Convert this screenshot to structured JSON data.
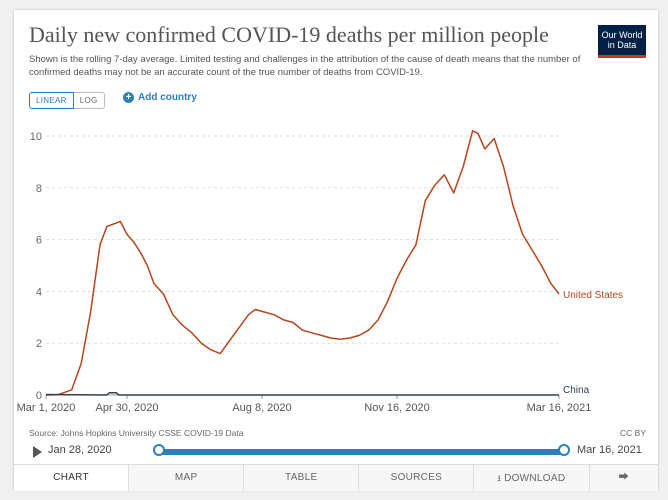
{
  "title": "Daily new confirmed COVID-19 deaths per million people",
  "subtitle": "Shown is the rolling 7-day average. Limited testing and challenges in the attribution of the cause of death means that the number of confirmed deaths may not be an accurate count of the true number of deaths from COVID-19.",
  "logo": {
    "line1": "Our World",
    "line2": "in Data"
  },
  "controls": {
    "linear": "LINEAR",
    "log": "LOG",
    "add_country": "Add country"
  },
  "source": "Source: Johns Hopkins University CSSE COVID-19 Data",
  "license": "CC BY",
  "timeline": {
    "start": "Jan 28, 2020",
    "end": "Mar 16, 2021"
  },
  "tabs": {
    "chart": "CHART",
    "map": "MAP",
    "table": "TABLE",
    "sources": "SOURCES",
    "download": "DOWNLOAD"
  },
  "colors": {
    "us": "#b5451b",
    "china": "#333e50",
    "accent": "#2c7fb8"
  },
  "icons": {
    "add": "plus-circle-icon",
    "play": "play-icon",
    "download": "download-icon",
    "share": "share-icon"
  },
  "chart_data": {
    "type": "line",
    "x_ticks": [
      "Mar 1, 2020",
      "Apr 30, 2020",
      "Aug 8, 2020",
      "Nov 16, 2020",
      "Mar 16, 2021"
    ],
    "y_ticks": [
      0,
      2,
      4,
      6,
      8,
      10
    ],
    "ylim": [
      0,
      10.5
    ],
    "grid": true,
    "series": [
      {
        "name": "United States",
        "points": [
          [
            "2020-03-01",
            0
          ],
          [
            "2020-03-10",
            0.01
          ],
          [
            "2020-03-20",
            0.2
          ],
          [
            "2020-03-27",
            1.2
          ],
          [
            "2020-04-03",
            3.2
          ],
          [
            "2020-04-10",
            5.8
          ],
          [
            "2020-04-15",
            6.5
          ],
          [
            "2020-04-20",
            6.6
          ],
          [
            "2020-04-25",
            6.7
          ],
          [
            "2020-04-30",
            6.2
          ],
          [
            "2020-05-05",
            5.9
          ],
          [
            "2020-05-10",
            5.5
          ],
          [
            "2020-05-15",
            5.0
          ],
          [
            "2020-05-20",
            4.3
          ],
          [
            "2020-05-27",
            3.9
          ],
          [
            "2020-06-03",
            3.1
          ],
          [
            "2020-06-10",
            2.7
          ],
          [
            "2020-06-17",
            2.4
          ],
          [
            "2020-06-24",
            2.0
          ],
          [
            "2020-07-01",
            1.75
          ],
          [
            "2020-07-08",
            1.6
          ],
          [
            "2020-07-15",
            2.1
          ],
          [
            "2020-07-22",
            2.6
          ],
          [
            "2020-07-29",
            3.1
          ],
          [
            "2020-08-03",
            3.3
          ],
          [
            "2020-08-10",
            3.2
          ],
          [
            "2020-08-17",
            3.1
          ],
          [
            "2020-08-24",
            2.9
          ],
          [
            "2020-08-31",
            2.8
          ],
          [
            "2020-09-07",
            2.5
          ],
          [
            "2020-09-14",
            2.4
          ],
          [
            "2020-09-21",
            2.3
          ],
          [
            "2020-09-28",
            2.2
          ],
          [
            "2020-10-05",
            2.15
          ],
          [
            "2020-10-12",
            2.2
          ],
          [
            "2020-10-19",
            2.3
          ],
          [
            "2020-10-26",
            2.5
          ],
          [
            "2020-11-02",
            2.9
          ],
          [
            "2020-11-09",
            3.6
          ],
          [
            "2020-11-16",
            4.5
          ],
          [
            "2020-11-23",
            5.2
          ],
          [
            "2020-11-30",
            5.8
          ],
          [
            "2020-12-07",
            7.5
          ],
          [
            "2020-12-14",
            8.1
          ],
          [
            "2020-12-21",
            8.5
          ],
          [
            "2020-12-28",
            7.8
          ],
          [
            "2021-01-04",
            8.8
          ],
          [
            "2021-01-11",
            10.2
          ],
          [
            "2021-01-15",
            10.1
          ],
          [
            "2021-01-20",
            9.5
          ],
          [
            "2021-01-27",
            9.9
          ],
          [
            "2021-02-03",
            8.8
          ],
          [
            "2021-02-10",
            7.3
          ],
          [
            "2021-02-17",
            6.2
          ],
          [
            "2021-02-24",
            5.6
          ],
          [
            "2021-03-03",
            5.0
          ],
          [
            "2021-03-10",
            4.3
          ],
          [
            "2021-03-16",
            3.9
          ]
        ]
      },
      {
        "name": "China",
        "points": [
          [
            "2020-03-01",
            0.02
          ],
          [
            "2020-04-15",
            0.0
          ],
          [
            "2020-04-17",
            0.09
          ],
          [
            "2020-04-22",
            0.09
          ],
          [
            "2020-04-24",
            0.0
          ],
          [
            "2021-03-16",
            0.0
          ]
        ]
      }
    ]
  }
}
